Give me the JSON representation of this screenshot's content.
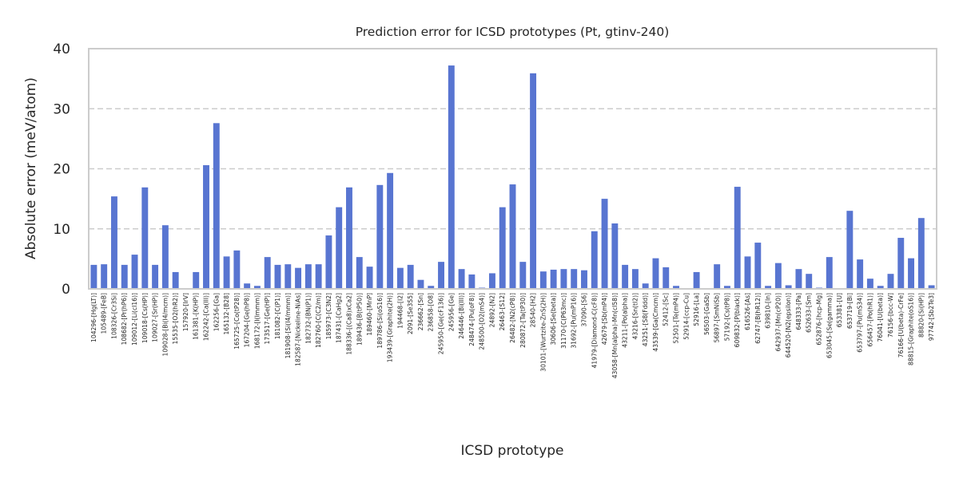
{
  "chart_data": {
    "type": "bar",
    "title": "Prediction error for ICSD prototypes (Pt, gtinv-240)",
    "xlabel": "ICSD prototype",
    "ylabel": "Absolute error (meV/atom)",
    "ylim": [
      0,
      40
    ],
    "yticks": [
      0,
      10,
      20,
      30,
      40
    ],
    "grid": "y dashed",
    "colors": {
      "bar": "#5875d1",
      "grid": "#cccccc",
      "spine": "#cccccc"
    },
    "categories": [
      "104296-[Hg(LT)]",
      "105489-[FeB]",
      "108326-[Cr3Si]",
      "108682-[Pr(hP6)]",
      "109012-[Li(cI16)]",
      "109018-[Cs(HP)]",
      "109027-[Sr(HP)]",
      "109028-[Bi(I4/mcm)]",
      "15535-[O2(hR2)]",
      "157920-[IrV]",
      "161381-[K(HP)]",
      "162242-[Ca(III)]",
      "162256-[Ga]",
      "165132-[B28]",
      "165725-[Co(tP28)]",
      "167204-[Ge(hP8)]",
      "168172-[I(Immm)]",
      "173517-[Ge(HP)]",
      "181082-[C(P1)]",
      "181908-[Si(I4/mmm)]",
      "182587-[Nickeline-NiAs]",
      "182732-[BN(P1)]",
      "182760-[C(C2/m)]",
      "185973-[C3N2]",
      "187431-[CaHg2]",
      "188336-[(Ca8)xCa2]",
      "189436-[B(tP50)]",
      "189460-[MnP]",
      "189786-[Si(oS16)]",
      "193439-[Graphite(2H)]",
      "194468-[I2]",
      "2091-[Se3S5]",
      "236662-[Sn]",
      "236858-[O8]",
      "245950-[Ge(cF136)]",
      "245956-[Ge]",
      "246446-[Bi(III)]",
      "248474-[Pu(oF8)]",
      "248500-[O2(mS4)]",
      "24892-[N2]",
      "26463-[S12]",
      "26482-[N2(cP8)]",
      "280872-[Ta(tP30)]",
      "28540-[H2]",
      "30101-[Wurtzite-ZnS(2H)]",
      "30606-[Se(beta)]",
      "31170-[C(P63mc)]",
      "31692-[Pu(mP16)]",
      "37090-[S6]",
      "41979-[Diamond-C(cF8)]",
      "42679-[Sb(mP4)]",
      "43058-[Mn(alpha)-Mn(cI58)]",
      "43211-[Po(alpha)]",
      "43216-[Sn(tI2)]",
      "43251-[S8(Fddd)]",
      "43539-[Ga(Cmcm)]",
      "52412-[Sc]",
      "52501-[Te(mP4)]",
      "52914-[ccp-Cu]",
      "52916-[La]",
      "56503-[GaSb]",
      "56897-[SmNiSb]",
      "57192-[Cs(tP8)]",
      "609832-[P(black)]",
      "616526-[As]",
      "62747-[B(hR12)]",
      "639810-[In]",
      "642937-[Mn(cP20)]",
      "644520-[N2(epsilon)]",
      "648333-[Pa]",
      "652633-[Sm]",
      "652876-[hcp-Mg]",
      "653045-[Se(gamma)]",
      "653381-[U]",
      "653719-[Bi]",
      "653797-[Pu(mS34)]",
      "656457-[Po(hR1)]",
      "76041-[U(beta)]",
      "76156-[bcc-W]",
      "76166-[U(beta)-CrFe]",
      "88815-[Graphite(oS16)]",
      "88820-[Si(HP)]",
      "97742-[Sb2Te3]"
    ],
    "values": [
      4.0,
      4.1,
      15.4,
      4.0,
      5.7,
      16.9,
      4.0,
      10.6,
      2.8,
      0.0,
      2.8,
      20.6,
      27.6,
      5.4,
      6.4,
      0.9,
      0.5,
      5.3,
      4.0,
      4.1,
      3.5,
      4.1,
      4.1,
      8.9,
      13.6,
      16.9,
      5.3,
      3.7,
      17.3,
      19.3,
      3.5,
      4.0,
      1.5,
      0.5,
      4.5,
      37.2,
      3.3,
      2.4,
      0.2,
      2.6,
      13.6,
      17.4,
      4.5,
      35.9,
      2.9,
      3.2,
      3.3,
      3.3,
      3.1,
      9.6,
      15.0,
      10.9,
      4.0,
      3.3,
      0.9,
      5.1,
      3.6,
      0.5,
      0.0,
      2.8,
      0.0,
      4.1,
      0.5,
      17.0,
      5.4,
      7.7,
      0.5,
      4.3,
      0.6,
      3.3,
      2.5,
      0.2,
      5.3,
      0.0,
      13.0,
      4.9,
      1.7,
      0.5,
      2.5,
      8.5,
      5.1,
      11.8,
      0.6
    ]
  }
}
